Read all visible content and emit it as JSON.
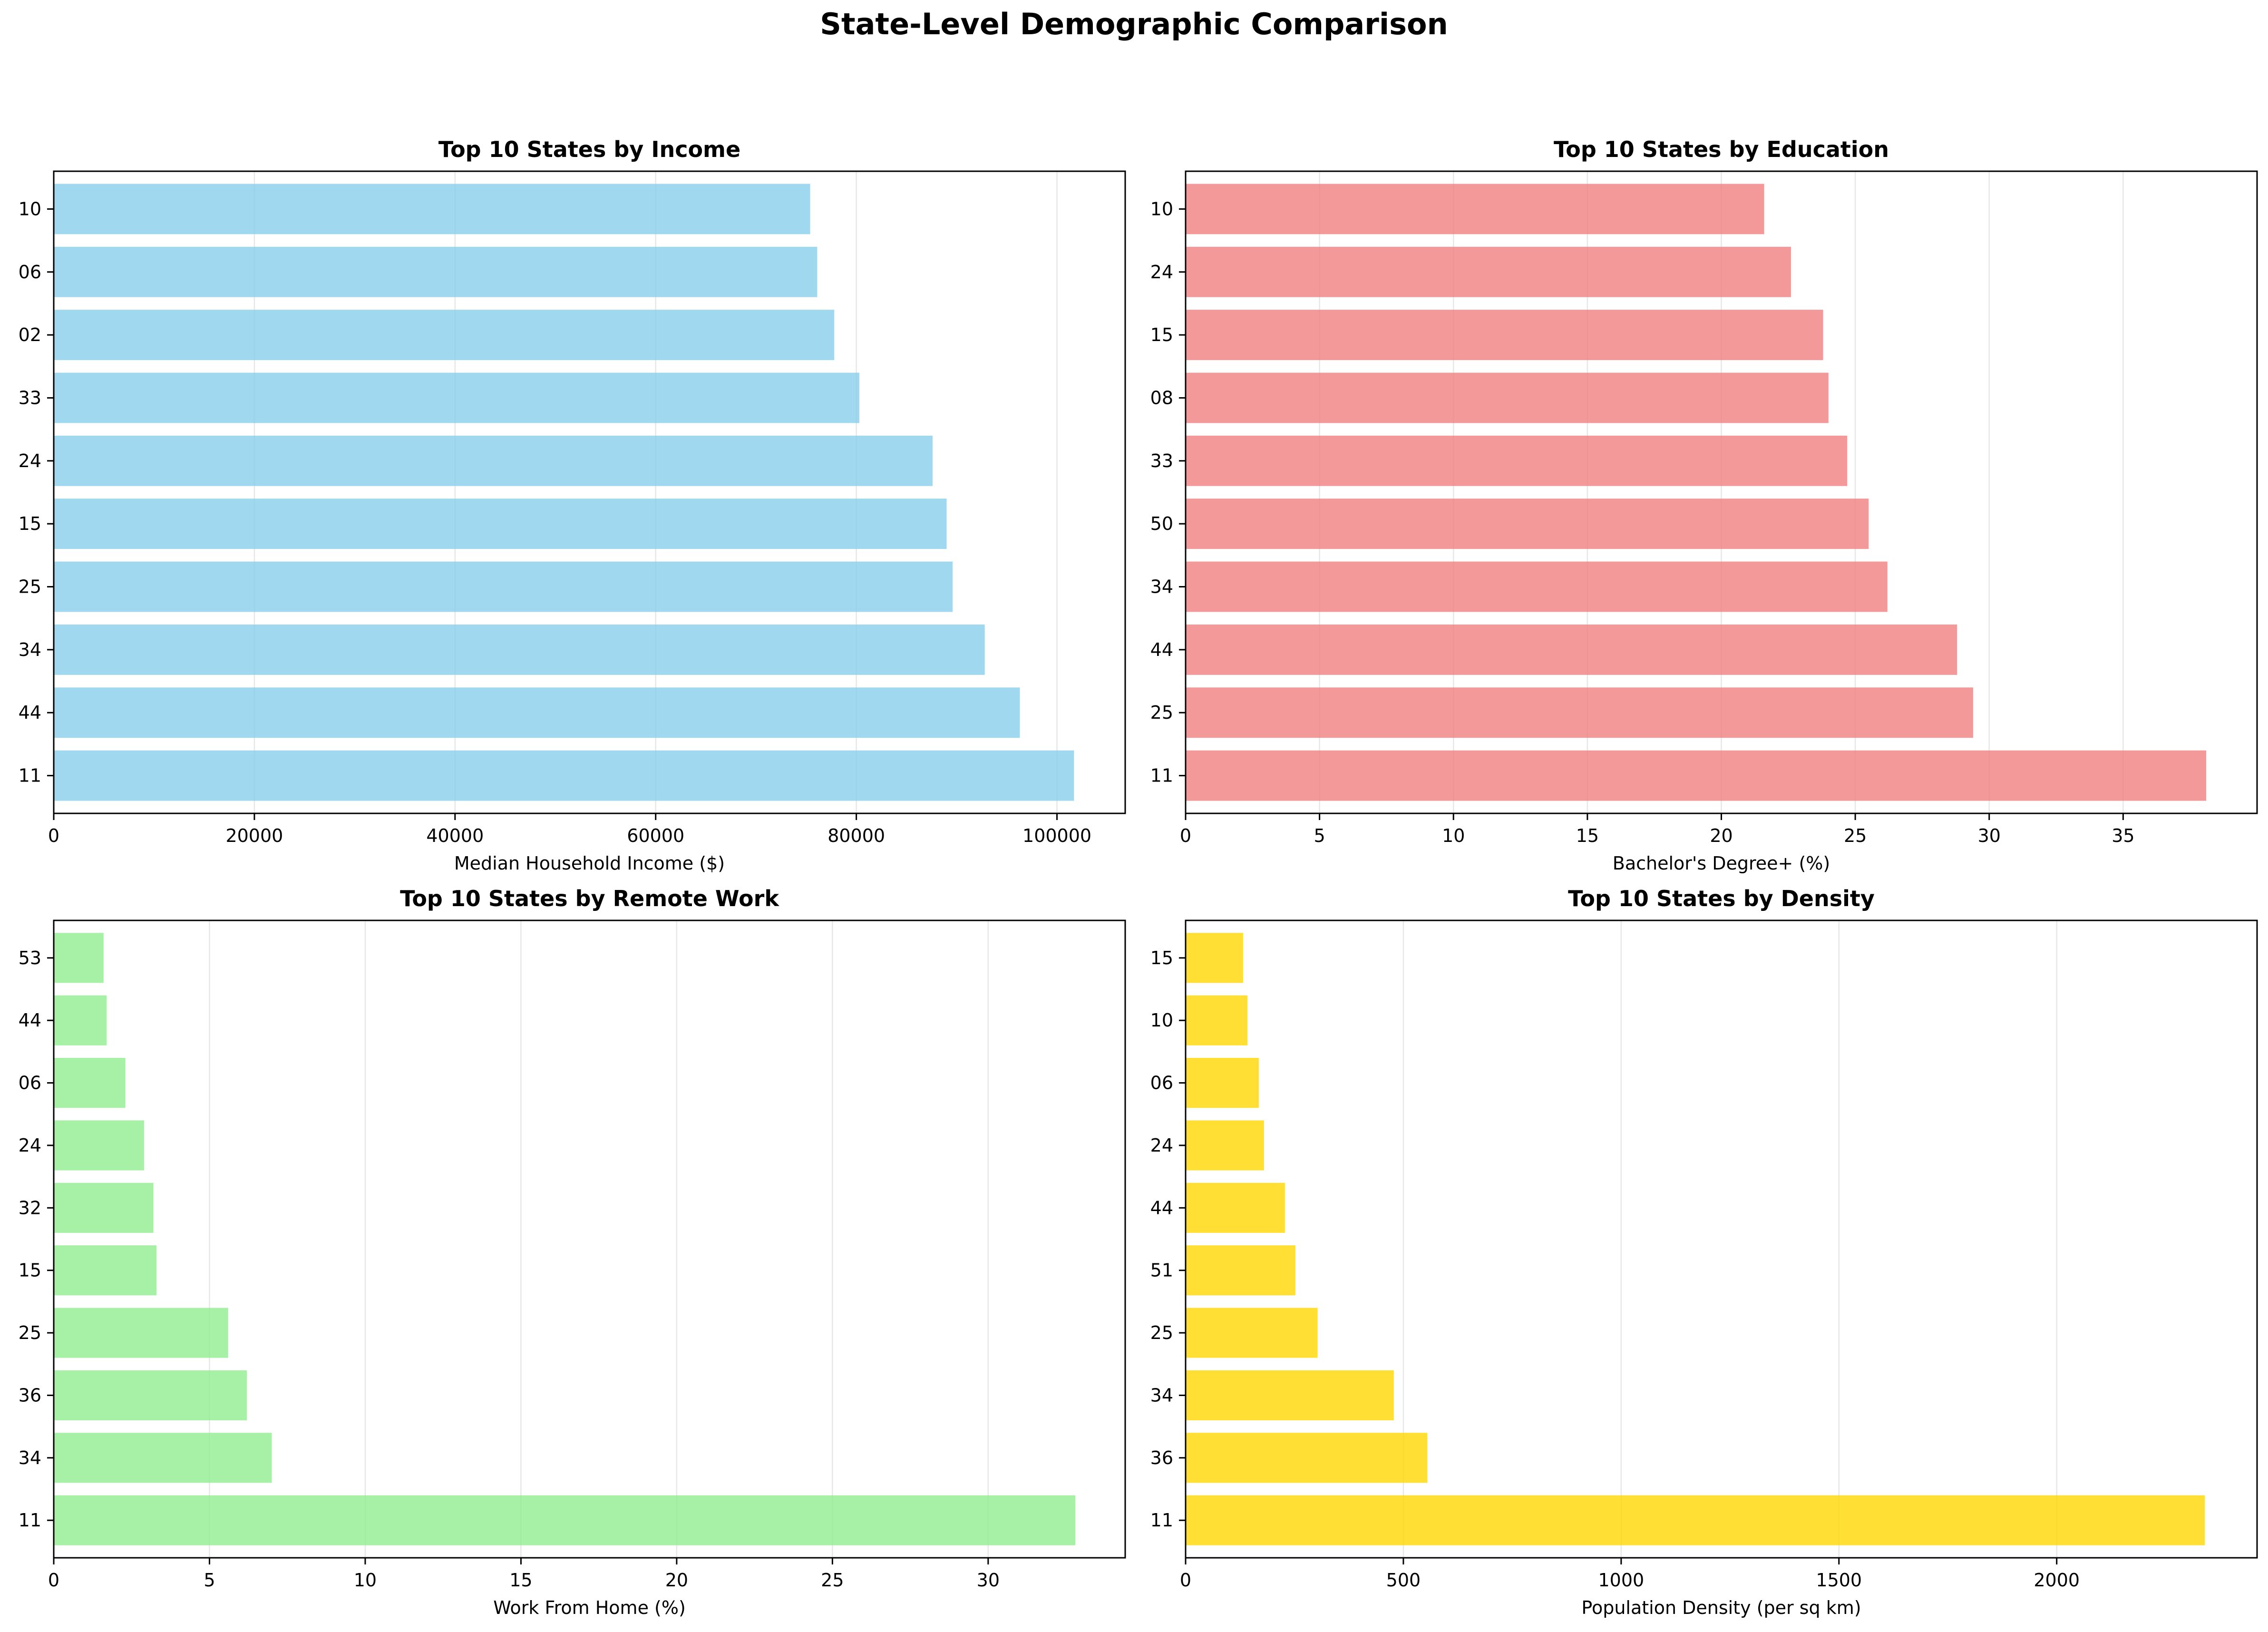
{
  "figure": {
    "title": "State-Level Demographic Comparison"
  },
  "chart_data": [
    {
      "type": "bar",
      "orientation": "horizontal",
      "title": "Top 10 States by Income",
      "xlabel": "Median Household Income ($)",
      "ylabel": "",
      "categories": [
        "11",
        "44",
        "34",
        "25",
        "15",
        "24",
        "33",
        "02",
        "06",
        "10"
      ],
      "values": [
        101700,
        96300,
        92800,
        89600,
        89000,
        87600,
        80300,
        77800,
        76100,
        75400
      ],
      "xlim": [
        0,
        106800
      ],
      "xticks": [
        0,
        20000,
        40000,
        60000,
        80000,
        100000
      ],
      "color": "#87ceeb",
      "grid": "x"
    },
    {
      "type": "bar",
      "orientation": "horizontal",
      "title": "Top 10 States by Education",
      "xlabel": "Bachelor's Degree+ (%)",
      "ylabel": "",
      "categories": [
        "11",
        "25",
        "44",
        "34",
        "50",
        "33",
        "08",
        "15",
        "24",
        "10"
      ],
      "values": [
        38.1,
        29.4,
        28.8,
        26.2,
        25.5,
        24.7,
        24.0,
        23.8,
        22.6,
        21.6
      ],
      "xlim": [
        0,
        40.0
      ],
      "xticks": [
        0,
        5,
        10,
        15,
        20,
        25,
        30,
        35
      ],
      "color": "#f08080",
      "grid": "x"
    },
    {
      "type": "bar",
      "orientation": "horizontal",
      "title": "Top 10 States by Remote Work",
      "xlabel": "Work From Home (%)",
      "ylabel": "",
      "categories": [
        "11",
        "34",
        "36",
        "25",
        "15",
        "32",
        "24",
        "06",
        "44",
        "53"
      ],
      "values": [
        32.8,
        7.0,
        6.2,
        5.6,
        3.3,
        3.2,
        2.9,
        2.3,
        1.7,
        1.6
      ],
      "xlim": [
        0,
        34.4
      ],
      "xticks": [
        0,
        5,
        10,
        15,
        20,
        25,
        30
      ],
      "color": "#90ee90",
      "grid": "x"
    },
    {
      "type": "bar",
      "orientation": "horizontal",
      "title": "Top 10 States by Density",
      "xlabel": "Population Density (per sq km)",
      "ylabel": "",
      "categories": [
        "11",
        "36",
        "34",
        "25",
        "51",
        "44",
        "24",
        "06",
        "10",
        "15"
      ],
      "values": [
        2340,
        555,
        478,
        303,
        252,
        228,
        180,
        168,
        142,
        132
      ],
      "xlim": [
        0,
        2460
      ],
      "xticks": [
        0,
        500,
        1000,
        1500,
        2000
      ],
      "color": "#ffd700",
      "grid": "x"
    }
  ]
}
